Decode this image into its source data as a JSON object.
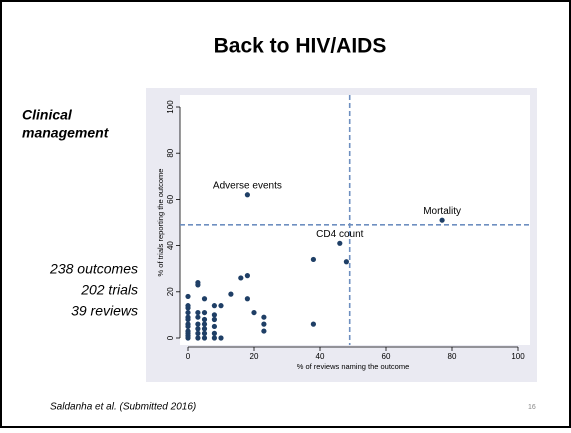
{
  "slide": {
    "title": "Back to HIV/AIDS",
    "section": [
      "Clinical",
      "management"
    ],
    "stats": [
      "238 outcomes",
      "202 trials",
      "39 reviews"
    ],
    "footer": "Saldanha et al. (Submitted 2016)",
    "page": "16"
  },
  "chart_data": {
    "type": "scatter",
    "x_label": "% of reviews naming the outcome",
    "y_label": "% of trials reporting the outcome",
    "xlim": [
      0,
      100
    ],
    "ylim": [
      0,
      100
    ],
    "xticks": [
      0,
      20,
      40,
      60,
      80,
      100
    ],
    "yticks": [
      0,
      20,
      40,
      60,
      80,
      100
    ],
    "reference_lines": {
      "x": 49,
      "y": 49,
      "color": "#6e8fc0"
    },
    "series": [
      {
        "color": "#1f3f66",
        "x": [
          18,
          77,
          46,
          38,
          48,
          38,
          18,
          16,
          18,
          13,
          20,
          23,
          23,
          23,
          10,
          8,
          8,
          8,
          8,
          8,
          5,
          3,
          3,
          0,
          0,
          0,
          0,
          0,
          0,
          0,
          0,
          0,
          0,
          0,
          3,
          3,
          3,
          3,
          3,
          3,
          5,
          5,
          5,
          5,
          5,
          5,
          8,
          10,
          0
        ],
        "values": [
          62,
          51,
          41,
          34,
          33,
          6,
          27,
          26,
          17,
          19,
          11,
          9,
          6,
          3,
          14,
          14,
          10,
          8,
          5,
          2,
          17,
          24,
          23,
          18,
          13,
          11,
          9,
          8,
          6,
          5,
          3,
          2,
          1,
          0,
          11,
          9,
          6,
          4,
          2,
          0,
          11,
          8,
          6,
          4,
          2,
          0,
          0,
          0,
          14
        ],
        "labels": [
          "Adverse events",
          "Mortality",
          "CD4 count",
          null,
          null,
          null,
          null,
          null,
          null,
          null,
          null,
          null,
          null,
          null,
          null,
          null,
          null,
          null,
          null,
          null,
          null,
          null,
          null,
          null,
          null,
          null,
          null,
          null,
          null,
          null,
          null,
          null,
          null,
          null,
          null,
          null,
          null,
          null,
          null,
          null,
          null,
          null,
          null,
          null,
          null,
          null,
          null,
          null,
          null
        ]
      }
    ]
  }
}
